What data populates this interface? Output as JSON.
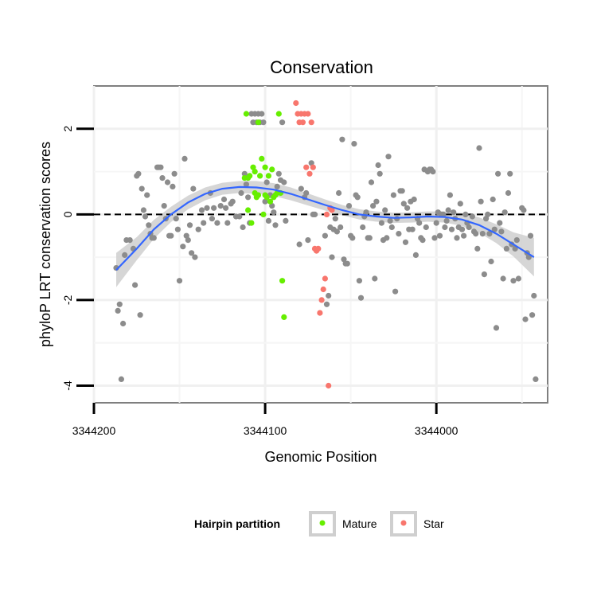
{
  "chart_data": {
    "type": "scatter",
    "title": "Conservation",
    "xlabel": "Genomic Position",
    "ylabel": "phyloP LRT conservation scores",
    "x_reversed": true,
    "xlim": [
      3344200,
      3343935
    ],
    "ylim": [
      -4.4,
      3.0
    ],
    "x_ticks": [
      3344200,
      3344100,
      3344000
    ],
    "x_tick_labels": [
      "3344200",
      "3344100",
      "3344000"
    ],
    "y_ticks": [
      2,
      0,
      -2,
      -4
    ],
    "y_tick_labels": [
      "2",
      "0",
      "-2",
      "-4"
    ],
    "reference_line": {
      "y": 0,
      "style": "dashed"
    },
    "grid": true,
    "legend": {
      "title": "Hairpin partition",
      "position": "bottom",
      "entries": [
        {
          "label": "Mature",
          "color": "#66ee00"
        },
        {
          "label": "Star",
          "color": "#f8766d"
        }
      ]
    },
    "colors": {
      "other": "#8c8c8c",
      "Mature": "#66ee00",
      "Star": "#f8766d",
      "smooth": "#3366ff",
      "band": "#cfcfcf"
    },
    "series": [
      {
        "points": [
          [
            3344187,
            -1.25
          ],
          [
            3344186,
            -2.25
          ],
          [
            3344185,
            -2.1
          ],
          [
            3344184,
            -3.85
          ],
          [
            3344183,
            -2.55
          ],
          [
            3344182,
            -0.95
          ],
          [
            3344181,
            -0.6
          ],
          [
            3344179,
            -0.6
          ],
          [
            3344177,
            -0.8
          ],
          [
            3344176,
            -1.65
          ],
          [
            3344175,
            0.9
          ],
          [
            3344174,
            0.95
          ],
          [
            3344173,
            -2.35
          ],
          [
            3344172,
            0.6
          ],
          [
            3344171,
            0.1
          ],
          [
            3344170,
            -0.05
          ],
          [
            3344169,
            0.45
          ],
          [
            3344168,
            -0.25
          ],
          [
            3344167,
            -0.45
          ],
          [
            3344166,
            -0.55
          ],
          [
            3344165,
            -0.55
          ],
          [
            3344163,
            1.1
          ],
          [
            3344162,
            1.1
          ],
          [
            3344161,
            1.1
          ],
          [
            3344160,
            0.85
          ],
          [
            3344159,
            0.2
          ],
          [
            3344158,
            -0.1
          ],
          [
            3344157,
            0.75
          ],
          [
            3344156,
            -0.5
          ],
          [
            3344155,
            -0.5
          ],
          [
            3344154,
            0.65
          ],
          [
            3344153,
            0.95
          ],
          [
            3344152,
            -0.1
          ],
          [
            3344151,
            -0.35
          ],
          [
            3344150,
            -1.55
          ],
          [
            3344148,
            -0.75
          ],
          [
            3344147,
            1.3
          ],
          [
            3344146,
            -0.5
          ],
          [
            3344145,
            -0.6
          ],
          [
            3344144,
            -0.25
          ],
          [
            3344143,
            -0.9
          ],
          [
            3344142,
            0.6
          ],
          [
            3344141,
            -1.0
          ],
          [
            3344139,
            -0.35
          ],
          [
            3344137,
            0.1
          ],
          [
            3344136,
            -0.2
          ],
          [
            3344134,
            0.15
          ],
          [
            3344132,
            0.5
          ],
          [
            3344131,
            -0.1
          ],
          [
            3344130,
            0.15
          ],
          [
            3344128,
            -0.2
          ],
          [
            3344126,
            0.2
          ],
          [
            3344124,
            0.35
          ],
          [
            3344123,
            0.15
          ],
          [
            3344122,
            -0.2
          ],
          [
            3344120,
            0.25
          ],
          [
            3344119,
            0.3
          ],
          [
            3344117,
            -0.05
          ],
          [
            3344115,
            -0.05
          ],
          [
            3344114,
            0.5
          ],
          [
            3344113,
            -0.3
          ],
          [
            3344112,
            0.95
          ],
          [
            3344111,
            0.7
          ],
          [
            3344110,
            0.4
          ],
          [
            3344109,
            -0.2
          ],
          [
            3344108,
            2.35
          ],
          [
            3344107,
            2.15
          ],
          [
            3344106,
            2.35
          ],
          [
            3344105,
            2.15
          ],
          [
            3344104,
            2.35
          ],
          [
            3344103,
            2.15
          ],
          [
            3344102,
            2.35
          ],
          [
            3344101,
            2.15
          ],
          [
            3344100,
            0.3
          ],
          [
            3344099,
            0.75
          ],
          [
            3344098,
            -0.15
          ],
          [
            3344097,
            0.45
          ],
          [
            3344096,
            0.2
          ],
          [
            3344095,
            0.05
          ],
          [
            3344094,
            -0.25
          ],
          [
            3344093,
            0.65
          ],
          [
            3344092,
            0.95
          ],
          [
            3344091,
            0.8
          ],
          [
            3344090,
            2.15
          ],
          [
            3344089,
            0.75
          ],
          [
            3344088,
            -0.15
          ],
          [
            3344080,
            -0.7
          ],
          [
            3344079,
            0.6
          ],
          [
            3344077,
            0.4
          ],
          [
            3344076,
            0.5
          ],
          [
            3344075,
            -0.6
          ],
          [
            3344073,
            1.2
          ],
          [
            3344072,
            0.0
          ],
          [
            3344071,
            0.0
          ],
          [
            3344065,
            -0.5
          ],
          [
            3344064,
            -2.1
          ],
          [
            3344063,
            -1.9
          ],
          [
            3344062,
            -0.3
          ],
          [
            3344061,
            -1.0
          ],
          [
            3344060,
            -0.35
          ],
          [
            3344059,
            -0.1
          ],
          [
            3344058,
            -0.4
          ],
          [
            3344057,
            0.5
          ],
          [
            3344056,
            -0.3
          ],
          [
            3344055,
            1.75
          ],
          [
            3344054,
            -1.05
          ],
          [
            3344053,
            -1.15
          ],
          [
            3344052,
            -1.15
          ],
          [
            3344051,
            0.2
          ],
          [
            3344050,
            -0.5
          ],
          [
            3344049,
            -0.55
          ],
          [
            3344048,
            1.65
          ],
          [
            3344047,
            0.45
          ],
          [
            3344046,
            0.4
          ],
          [
            3344045,
            -1.55
          ],
          [
            3344044,
            -1.95
          ],
          [
            3344043,
            -0.3
          ],
          [
            3344042,
            -0.05
          ],
          [
            3344041,
            0.05
          ],
          [
            3344040,
            -0.55
          ],
          [
            3344039,
            -0.55
          ],
          [
            3344038,
            0.75
          ],
          [
            3344037,
            0.2
          ],
          [
            3344036,
            -1.5
          ],
          [
            3344035,
            0.3
          ],
          [
            3344034,
            1.15
          ],
          [
            3344033,
            0.95
          ],
          [
            3344032,
            -0.2
          ],
          [
            3344031,
            -0.6
          ],
          [
            3344030,
            0.1
          ],
          [
            3344029,
            -0.55
          ],
          [
            3344028,
            1.35
          ],
          [
            3344027,
            -0.15
          ],
          [
            3344026,
            -0.3
          ],
          [
            3344025,
            0.45
          ],
          [
            3344024,
            -1.8
          ],
          [
            3344023,
            -0.1
          ],
          [
            3344022,
            -0.45
          ],
          [
            3344021,
            0.55
          ],
          [
            3344020,
            0.55
          ],
          [
            3344019,
            0.25
          ],
          [
            3344018,
            -0.65
          ],
          [
            3344017,
            0.15
          ],
          [
            3344016,
            -0.35
          ],
          [
            3344015,
            0.3
          ],
          [
            3344014,
            -0.35
          ],
          [
            3344013,
            0.35
          ],
          [
            3344012,
            -0.95
          ],
          [
            3344011,
            -0.1
          ],
          [
            3344010,
            -0.2
          ],
          [
            3344009,
            -0.55
          ],
          [
            3344008,
            -0.6
          ],
          [
            3344007,
            1.05
          ],
          [
            3344006,
            -0.3
          ],
          [
            3344005,
            1.0
          ],
          [
            3344004,
            1.05
          ],
          [
            3344003,
            1.05
          ],
          [
            3344002,
            1.0
          ],
          [
            3344001,
            -0.55
          ],
          [
            3344000,
            -0.2
          ],
          [
            3343999,
            0.05
          ],
          [
            3343998,
            -0.5
          ],
          [
            3343997,
            0.0
          ],
          [
            3343996,
            0.0
          ],
          [
            3343995,
            -0.3
          ],
          [
            3343994,
            -0.15
          ],
          [
            3343993,
            0.1
          ],
          [
            3343992,
            0.45
          ],
          [
            3343991,
            -0.35
          ],
          [
            3343990,
            0.05
          ],
          [
            3343989,
            -0.1
          ],
          [
            3343988,
            -0.55
          ],
          [
            3343987,
            -0.3
          ],
          [
            3343986,
            0.25
          ],
          [
            3343985,
            -0.35
          ],
          [
            3343984,
            -0.5
          ],
          [
            3343983,
            0.0
          ],
          [
            3343982,
            -0.2
          ],
          [
            3343981,
            -0.3
          ],
          [
            3343979,
            -0.05
          ],
          [
            3343978,
            -0.4
          ],
          [
            3343977,
            -0.45
          ],
          [
            3343976,
            -0.8
          ],
          [
            3343975,
            1.55
          ],
          [
            3343974,
            0.3
          ],
          [
            3343973,
            -0.45
          ],
          [
            3343972,
            -1.4
          ],
          [
            3343971,
            -0.1
          ],
          [
            3343970,
            0.0
          ],
          [
            3343969,
            -0.45
          ],
          [
            3343968,
            -1.1
          ],
          [
            3343967,
            0.35
          ],
          [
            3343966,
            -0.35
          ],
          [
            3343965,
            -2.65
          ],
          [
            3343964,
            0.95
          ],
          [
            3343963,
            -0.2
          ],
          [
            3343962,
            -0.4
          ],
          [
            3343961,
            -1.5
          ],
          [
            3343960,
            0.05
          ],
          [
            3343959,
            -0.8
          ],
          [
            3343958,
            0.5
          ],
          [
            3343957,
            0.95
          ],
          [
            3343956,
            -0.7
          ],
          [
            3343955,
            -1.55
          ],
          [
            3343954,
            -0.8
          ],
          [
            3343953,
            -0.6
          ],
          [
            3343952,
            -1.5
          ],
          [
            3343950,
            0.15
          ],
          [
            3343949,
            0.1
          ],
          [
            3343948,
            -2.45
          ],
          [
            3343947,
            -0.9
          ],
          [
            3343946,
            -1.0
          ],
          [
            3343945,
            -0.5
          ],
          [
            3343944,
            -2.35
          ],
          [
            3343943,
            -1.9
          ],
          [
            3343942,
            -3.85
          ]
        ]
      },
      {
        "name": "Mature",
        "points": [
          [
            3344112,
            0.85
          ],
          [
            3344111,
            2.35
          ],
          [
            3344110,
            0.1
          ],
          [
            3344110,
            0.85
          ],
          [
            3344109,
            0.9
          ],
          [
            3344108,
            -0.2
          ],
          [
            3344107,
            1.1
          ],
          [
            3344106,
            0.5
          ],
          [
            3344106,
            1.0
          ],
          [
            3344105,
            0.4
          ],
          [
            3344104,
            2.15
          ],
          [
            3344104,
            0.45
          ],
          [
            3344103,
            0.9
          ],
          [
            3344102,
            1.3
          ],
          [
            3344101,
            0.0
          ],
          [
            3344100,
            0.45
          ],
          [
            3344100,
            1.1
          ],
          [
            3344099,
            0.4
          ],
          [
            3344098,
            0.9
          ],
          [
            3344097,
            0.3
          ],
          [
            3344096,
            1.05
          ],
          [
            3344095,
            0.4
          ],
          [
            3344094,
            0.45
          ],
          [
            3344093,
            0.5
          ],
          [
            3344092,
            2.35
          ],
          [
            3344091,
            0.5
          ],
          [
            3344090,
            -1.55
          ],
          [
            3344089,
            -2.4
          ]
        ]
      },
      {
        "name": "Star",
        "points": [
          [
            3344082,
            2.6
          ],
          [
            3344081,
            2.35
          ],
          [
            3344080,
            2.15
          ],
          [
            3344079,
            2.35
          ],
          [
            3344078,
            2.15
          ],
          [
            3344077,
            2.35
          ],
          [
            3344076,
            1.1
          ],
          [
            3344075,
            2.35
          ],
          [
            3344074,
            0.95
          ],
          [
            3344073,
            2.15
          ],
          [
            3344072,
            1.1
          ],
          [
            3344071,
            -0.8
          ],
          [
            3344070,
            -0.85
          ],
          [
            3344069,
            -0.8
          ],
          [
            3344068,
            -2.3
          ],
          [
            3344067,
            -2.0
          ],
          [
            3344066,
            -1.75
          ],
          [
            3344065,
            -1.5
          ],
          [
            3344064,
            0.0
          ],
          [
            3344063,
            -4.0
          ],
          [
            3344062,
            0.15
          ],
          [
            3344061,
            0.1
          ]
        ]
      }
    ],
    "smooth_line": {
      "x": [
        3344187,
        3344175,
        3344165,
        3344155,
        3344145,
        3344135,
        3344125,
        3344115,
        3344105,
        3344095,
        3344085,
        3344075,
        3344065,
        3344055,
        3344045,
        3344035,
        3344025,
        3344015,
        3344005,
        3343995,
        3343985,
        3343975,
        3343965,
        3343955,
        3343943
      ],
      "y": [
        -1.3,
        -0.8,
        -0.35,
        0.0,
        0.28,
        0.48,
        0.6,
        0.64,
        0.63,
        0.58,
        0.48,
        0.35,
        0.22,
        0.1,
        0.0,
        -0.05,
        -0.08,
        -0.07,
        -0.05,
        -0.06,
        -0.12,
        -0.25,
        -0.45,
        -0.7,
        -1.0
      ],
      "ci_lower": [
        -1.7,
        -1.07,
        -0.57,
        -0.18,
        0.12,
        0.33,
        0.46,
        0.5,
        0.48,
        0.43,
        0.33,
        0.21,
        0.09,
        -0.02,
        -0.12,
        -0.17,
        -0.2,
        -0.19,
        -0.17,
        -0.19,
        -0.27,
        -0.43,
        -0.67,
        -0.98,
        -1.45
      ],
      "ci_upper": [
        -0.9,
        -0.53,
        -0.13,
        0.18,
        0.44,
        0.63,
        0.74,
        0.78,
        0.78,
        0.73,
        0.63,
        0.49,
        0.35,
        0.22,
        0.12,
        0.07,
        0.04,
        0.05,
        0.07,
        0.07,
        0.03,
        -0.07,
        -0.23,
        -0.42,
        -0.55
      ]
    }
  }
}
